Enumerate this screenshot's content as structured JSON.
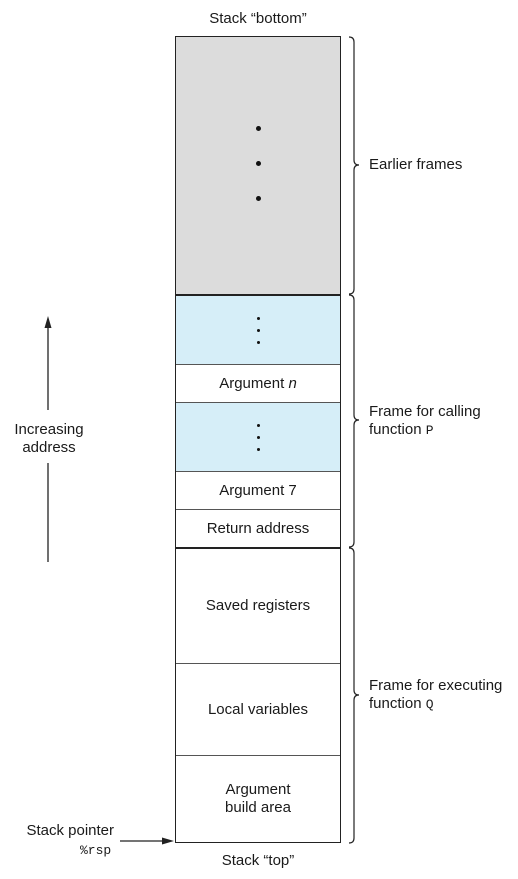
{
  "labels": {
    "stack_bottom": "Stack “bottom”",
    "stack_top": "Stack “top”",
    "increasing_line1": "Increasing",
    "increasing_line2": "address",
    "stack_pointer_line1": "Stack pointer",
    "stack_pointer_reg": "%rsp"
  },
  "cells": {
    "argument_n_prefix": "Argument",
    "argument_n_var": "n",
    "argument_7": "Argument 7",
    "return_address": "Return address",
    "saved_registers": "Saved registers",
    "local_variables": "Local variables",
    "build_area_line1": "Argument",
    "build_area_line2": "build area"
  },
  "frames": {
    "earlier": "Earlier frames",
    "calling_line1": "Frame for calling",
    "calling_line2_prefix": "function",
    "calling_fn": "P",
    "executing_line1": "Frame for executing",
    "executing_line2_prefix": "function",
    "executing_fn": "Q"
  },
  "colors": {
    "earlier_fill": "#dcdcdc",
    "ellipsis_fill": "#d6eef8"
  }
}
